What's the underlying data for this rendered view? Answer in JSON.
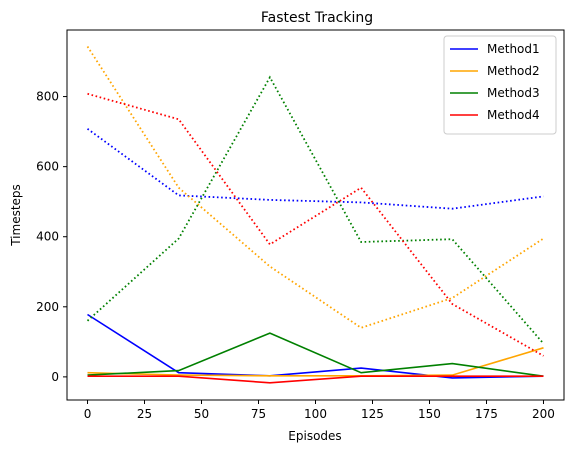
{
  "chart_data": {
    "type": "line",
    "title": "Fastest Tracking",
    "xlabel": "Episodes",
    "ylabel": "Timesteps",
    "xlim": [
      -9,
      209
    ],
    "ylim": [
      -66,
      990
    ],
    "xticks": [
      0,
      25,
      50,
      75,
      100,
      125,
      150,
      175,
      200
    ],
    "yticks": [
      0,
      200,
      400,
      600,
      800
    ],
    "legend_position": "top-right",
    "x": [
      0,
      40,
      80,
      120,
      160,
      200
    ],
    "series": [
      {
        "name": "Method1",
        "color": "#0000ff",
        "style": "solid",
        "values": [
          178,
          12,
          3,
          25,
          -3,
          2
        ]
      },
      {
        "name": "Method2",
        "color": "#ffa500",
        "style": "solid",
        "values": [
          12,
          5,
          3,
          3,
          5,
          83
        ]
      },
      {
        "name": "Method3",
        "color": "#008000",
        "style": "solid",
        "values": [
          5,
          18,
          125,
          12,
          38,
          2
        ]
      },
      {
        "name": "Method4",
        "color": "#ff0000",
        "style": "solid",
        "values": [
          2,
          2,
          -17,
          2,
          2,
          2
        ]
      },
      {
        "name": "",
        "color": "#0000ff",
        "style": "dotted",
        "values": [
          708,
          518,
          505,
          498,
          480,
          515
        ]
      },
      {
        "name": "",
        "color": "#ffa500",
        "style": "dotted",
        "values": [
          943,
          540,
          315,
          140,
          225,
          395
        ]
      },
      {
        "name": "",
        "color": "#008000",
        "style": "dotted",
        "values": [
          160,
          395,
          855,
          385,
          393,
          95
        ]
      },
      {
        "name": "",
        "color": "#ff0000",
        "style": "dotted",
        "values": [
          808,
          735,
          378,
          540,
          208,
          60
        ]
      }
    ]
  }
}
